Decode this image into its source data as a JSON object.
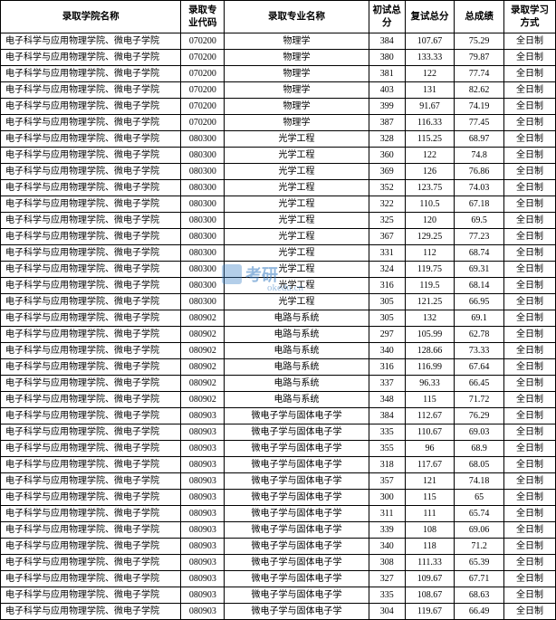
{
  "columns": [
    "录取学院名称",
    "录取专业代码",
    "录取专业名称",
    "初试总分",
    "复试总分",
    "总成绩",
    "录取学习方式"
  ],
  "school_name": "电子科学与应用物理学院、微电子学院",
  "study_mode": "全日制",
  "watermark_main": "考研",
  "watermark_sub": "okedu.cn",
  "rows": [
    {
      "code": "070200",
      "major": "物理学",
      "s1": "384",
      "s2": "107.67",
      "total": "75.29"
    },
    {
      "code": "070200",
      "major": "物理学",
      "s1": "380",
      "s2": "133.33",
      "total": "79.87"
    },
    {
      "code": "070200",
      "major": "物理学",
      "s1": "381",
      "s2": "122",
      "total": "77.74"
    },
    {
      "code": "070200",
      "major": "物理学",
      "s1": "403",
      "s2": "131",
      "total": "82.62"
    },
    {
      "code": "070200",
      "major": "物理学",
      "s1": "399",
      "s2": "91.67",
      "total": "74.19"
    },
    {
      "code": "070200",
      "major": "物理学",
      "s1": "387",
      "s2": "116.33",
      "total": "77.45"
    },
    {
      "code": "080300",
      "major": "光学工程",
      "s1": "328",
      "s2": "115.25",
      "total": "68.97"
    },
    {
      "code": "080300",
      "major": "光学工程",
      "s1": "360",
      "s2": "122",
      "total": "74.8"
    },
    {
      "code": "080300",
      "major": "光学工程",
      "s1": "369",
      "s2": "126",
      "total": "76.86"
    },
    {
      "code": "080300",
      "major": "光学工程",
      "s1": "352",
      "s2": "123.75",
      "total": "74.03"
    },
    {
      "code": "080300",
      "major": "光学工程",
      "s1": "322",
      "s2": "110.5",
      "total": "67.18"
    },
    {
      "code": "080300",
      "major": "光学工程",
      "s1": "325",
      "s2": "120",
      "total": "69.5"
    },
    {
      "code": "080300",
      "major": "光学工程",
      "s1": "367",
      "s2": "129.25",
      "total": "77.23"
    },
    {
      "code": "080300",
      "major": "光学工程",
      "s1": "331",
      "s2": "112",
      "total": "68.74"
    },
    {
      "code": "080300",
      "major": "光学工程",
      "s1": "324",
      "s2": "119.75",
      "total": "69.31"
    },
    {
      "code": "080300",
      "major": "光学工程",
      "s1": "316",
      "s2": "119.5",
      "total": "68.14"
    },
    {
      "code": "080300",
      "major": "光学工程",
      "s1": "305",
      "s2": "121.25",
      "total": "66.95"
    },
    {
      "code": "080902",
      "major": "电路与系统",
      "s1": "305",
      "s2": "132",
      "total": "69.1"
    },
    {
      "code": "080902",
      "major": "电路与系统",
      "s1": "297",
      "s2": "105.99",
      "total": "62.78"
    },
    {
      "code": "080902",
      "major": "电路与系统",
      "s1": "340",
      "s2": "128.66",
      "total": "73.33"
    },
    {
      "code": "080902",
      "major": "电路与系统",
      "s1": "316",
      "s2": "116.99",
      "total": "67.64"
    },
    {
      "code": "080902",
      "major": "电路与系统",
      "s1": "337",
      "s2": "96.33",
      "total": "66.45"
    },
    {
      "code": "080902",
      "major": "电路与系统",
      "s1": "348",
      "s2": "115",
      "total": "71.72"
    },
    {
      "code": "080903",
      "major": "微电子学与固体电子学",
      "s1": "384",
      "s2": "112.67",
      "total": "76.29"
    },
    {
      "code": "080903",
      "major": "微电子学与固体电子学",
      "s1": "335",
      "s2": "110.67",
      "total": "69.03"
    },
    {
      "code": "080903",
      "major": "微电子学与固体电子学",
      "s1": "355",
      "s2": "96",
      "total": "68.9"
    },
    {
      "code": "080903",
      "major": "微电子学与固体电子学",
      "s1": "318",
      "s2": "117.67",
      "total": "68.05"
    },
    {
      "code": "080903",
      "major": "微电子学与固体电子学",
      "s1": "357",
      "s2": "121",
      "total": "74.18"
    },
    {
      "code": "080903",
      "major": "微电子学与固体电子学",
      "s1": "300",
      "s2": "115",
      "total": "65"
    },
    {
      "code": "080903",
      "major": "微电子学与固体电子学",
      "s1": "311",
      "s2": "111",
      "total": "65.74"
    },
    {
      "code": "080903",
      "major": "微电子学与固体电子学",
      "s1": "339",
      "s2": "108",
      "total": "69.06"
    },
    {
      "code": "080903",
      "major": "微电子学与固体电子学",
      "s1": "340",
      "s2": "118",
      "total": "71.2"
    },
    {
      "code": "080903",
      "major": "微电子学与固体电子学",
      "s1": "308",
      "s2": "111.33",
      "total": "65.39"
    },
    {
      "code": "080903",
      "major": "微电子学与固体电子学",
      "s1": "327",
      "s2": "109.67",
      "total": "67.71"
    },
    {
      "code": "080903",
      "major": "微电子学与固体电子学",
      "s1": "335",
      "s2": "108.67",
      "total": "68.63"
    },
    {
      "code": "080903",
      "major": "微电子学与固体电子学",
      "s1": "304",
      "s2": "119.67",
      "total": "66.49"
    }
  ]
}
